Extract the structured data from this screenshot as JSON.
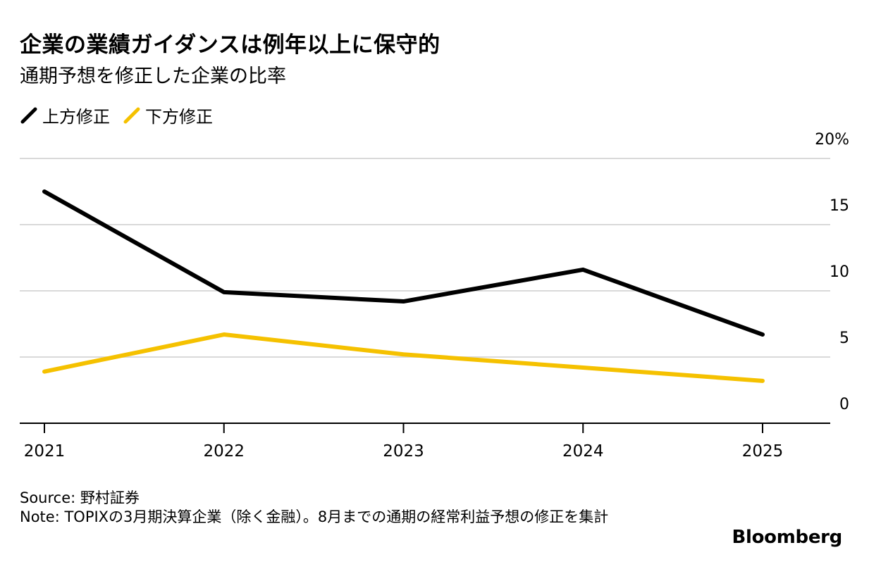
{
  "chart_data": {
    "type": "line",
    "title": "企業の業績ガイダンスは例年以上に保守的",
    "subtitle": "通期予想を修正した企業の比率",
    "categories": [
      "2021",
      "2022",
      "2023",
      "2024",
      "2025"
    ],
    "series": [
      {
        "name": "上方修正",
        "color": "#000000",
        "values": [
          17.5,
          9.9,
          9.2,
          11.6,
          6.7
        ]
      },
      {
        "name": "下方修正",
        "color": "#F5C100",
        "values": [
          3.9,
          6.7,
          5.2,
          4.2,
          3.2
        ]
      }
    ],
    "ylim": [
      0,
      20
    ],
    "yticks": [
      "0",
      "5",
      "10",
      "15",
      "20%"
    ],
    "ytick_values": [
      0,
      5,
      10,
      15,
      20
    ],
    "xlabel": "",
    "ylabel": "",
    "grid": true,
    "legend_position": "top-left"
  },
  "footer": {
    "source": "Source: 野村証券",
    "note": "Note: TOPIXの3月期決算企業（除く金融）。8月までの通期の経常利益予想の修正を集計"
  },
  "brand": "Bloomberg"
}
